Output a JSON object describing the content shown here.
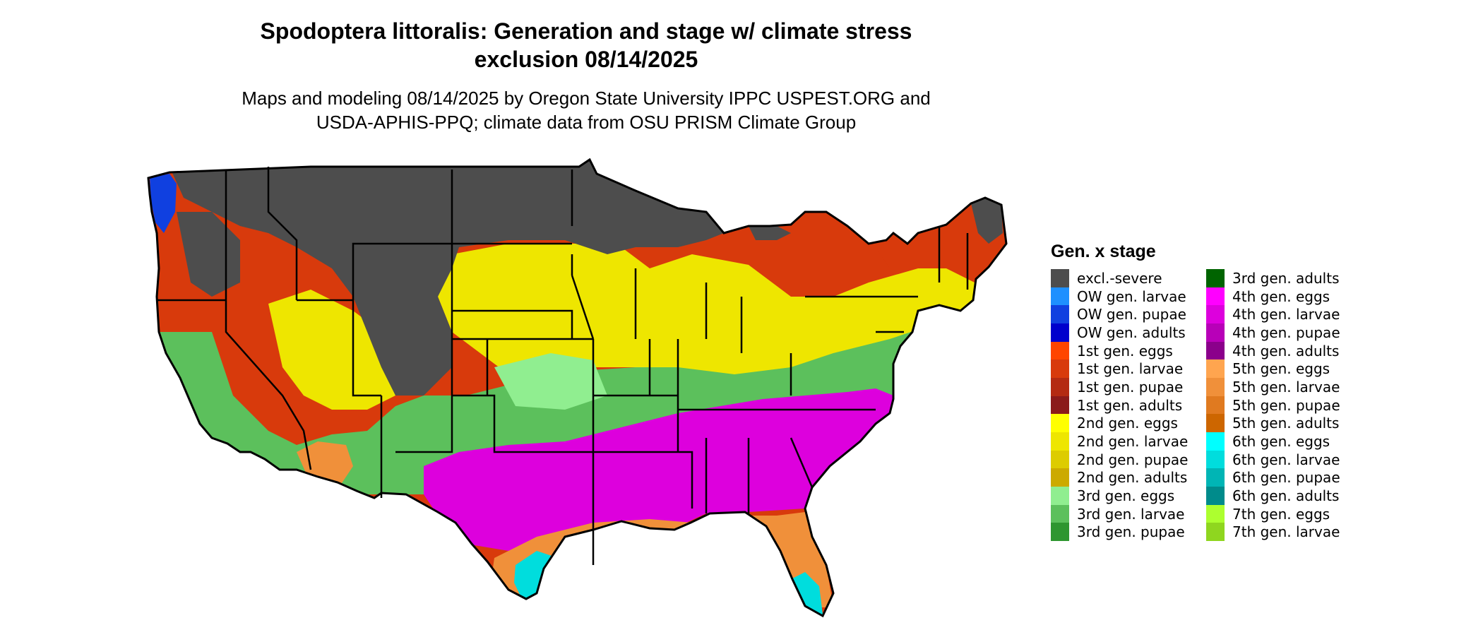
{
  "title_line1": "Spodoptera littoralis: Generation and stage w/ climate stress",
  "title_line2": "exclusion 08/14/2025",
  "subtitle_line1": "Maps and modeling 08/14/2025 by Oregon State University IPPC USPEST.ORG and",
  "subtitle_line2": "USDA-APHIS-PPQ; climate data from OSU PRISM Climate Group",
  "legend": {
    "title": "Gen. x stage",
    "items": [
      {
        "label": "excl.-severe",
        "color": "#4d4d4d"
      },
      {
        "label": "OW gen. larvae",
        "color": "#1e90ff"
      },
      {
        "label": "OW gen. pupae",
        "color": "#1040e0"
      },
      {
        "label": "OW gen. adults",
        "color": "#0000cd"
      },
      {
        "label": "1st gen. eggs",
        "color": "#ff4500"
      },
      {
        "label": "1st gen. larvae",
        "color": "#d83a0c"
      },
      {
        "label": "1st gen. pupae",
        "color": "#b42a12"
      },
      {
        "label": "1st gen. adults",
        "color": "#8b1a1a"
      },
      {
        "label": "2nd gen. eggs",
        "color": "#ffff00"
      },
      {
        "label": "2nd gen. larvae",
        "color": "#eee600"
      },
      {
        "label": "2nd gen. pupae",
        "color": "#ddcc00"
      },
      {
        "label": "2nd gen. adults",
        "color": "#ccaa00"
      },
      {
        "label": "3rd gen. eggs",
        "color": "#90ee90"
      },
      {
        "label": "3rd gen. larvae",
        "color": "#5cc05c"
      },
      {
        "label": "3rd gen. pupae",
        "color": "#2e9630"
      },
      {
        "label": "3rd gen. adults",
        "color": "#006400"
      },
      {
        "label": "4th gen. eggs",
        "color": "#ff00ff"
      },
      {
        "label": "4th gen. larvae",
        "color": "#dd00dd"
      },
      {
        "label": "4th gen. pupae",
        "color": "#b800b8"
      },
      {
        "label": "4th gen. adults",
        "color": "#8b008b"
      },
      {
        "label": "5th gen. eggs",
        "color": "#ffa54f"
      },
      {
        "label": "5th gen. larvae",
        "color": "#f0903a"
      },
      {
        "label": "5th gen. pupae",
        "color": "#e07a20"
      },
      {
        "label": "5th gen. adults",
        "color": "#cd6600"
      },
      {
        "label": "6th gen. eggs",
        "color": "#00ffff"
      },
      {
        "label": "6th gen. larvae",
        "color": "#00dddd"
      },
      {
        "label": "6th gen. pupae",
        "color": "#00b5b5"
      },
      {
        "label": "6th gen. adults",
        "color": "#008b8b"
      },
      {
        "label": "7th gen. eggs",
        "color": "#adff2f"
      },
      {
        "label": "7th gen. larvae",
        "color": "#8fd61f"
      }
    ]
  },
  "map_zones": {
    "excluded": "excl.-severe",
    "northwest": "1st gen. larvae",
    "north_central": "2nd gen. larvae",
    "mid_latitude": "3rd gen. larvae",
    "south": "4th gen. larvae",
    "gulf_coast": "5th gen. larvae",
    "south_texas": "6th gen. larvae"
  }
}
